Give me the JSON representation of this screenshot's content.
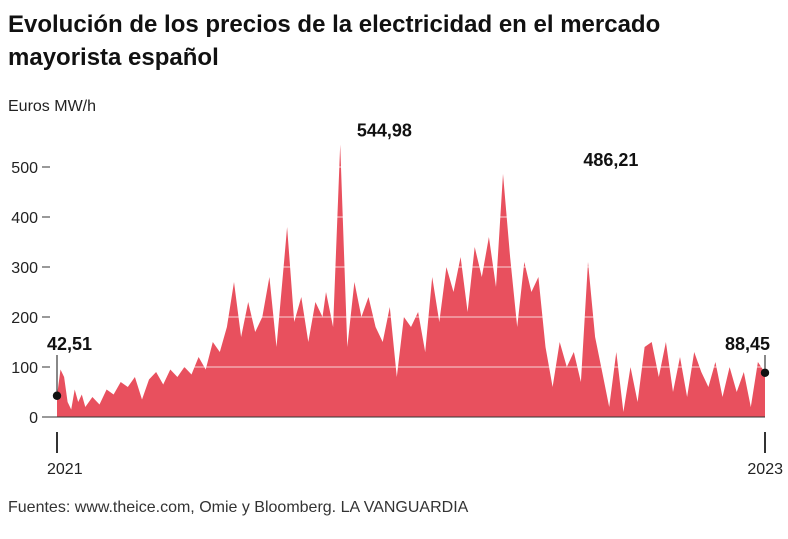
{
  "header": {
    "title": "Evolución de los precios de la electricidad en el mercado mayorista español"
  },
  "footer": {
    "source": "Fuentes: www.theice.com, Omie y Bloomberg. LA VANGUARDIA"
  },
  "colors": {
    "area_fill": "#e8505e",
    "gridline": "#ffffff",
    "axis": "#333333",
    "marker": "#111111"
  },
  "chart_data": {
    "type": "area",
    "ylabel": "Euros MW/h",
    "xlabel": "",
    "ylim": [
      0,
      560
    ],
    "yticks": [
      0,
      100,
      200,
      300,
      400,
      500
    ],
    "xlim": [
      2021.0,
      2023.0
    ],
    "xticks": [
      {
        "value": 2021.0,
        "label": "2021"
      },
      {
        "value": 2023.0,
        "label": "2023"
      }
    ],
    "grid": "horizontal",
    "series": [
      {
        "x": [
          2021.0,
          2021.01,
          2021.02,
          2021.03,
          2021.04,
          2021.05,
          2021.06,
          2021.07,
          2021.08,
          2021.1,
          2021.12,
          2021.14,
          2021.16,
          2021.18,
          2021.2,
          2021.22,
          2021.24,
          2021.26,
          2021.28,
          2021.3,
          2021.32,
          2021.34,
          2021.36,
          2021.38,
          2021.4,
          2021.42,
          2021.44,
          2021.46,
          2021.48,
          2021.5,
          2021.52,
          2021.54,
          2021.56,
          2021.58,
          2021.6,
          2021.62,
          2021.64,
          2021.65,
          2021.67,
          2021.69,
          2021.71,
          2021.73,
          2021.75,
          2021.76,
          2021.78,
          2021.8,
          2021.82,
          2021.84,
          2021.86,
          2021.88,
          2021.9,
          2021.92,
          2021.94,
          2021.96,
          2021.98,
          2022.0,
          2022.02,
          2022.04,
          2022.06,
          2022.08,
          2022.1,
          2022.12,
          2022.14,
          2022.16,
          2022.18,
          2022.2,
          2022.22,
          2022.24,
          2022.26,
          2022.28,
          2022.3,
          2022.32,
          2022.34,
          2022.36,
          2022.38,
          2022.4,
          2022.42,
          2022.44,
          2022.46,
          2022.48,
          2022.5,
          2022.52,
          2022.54,
          2022.56,
          2022.58,
          2022.6,
          2022.62,
          2022.64,
          2022.66,
          2022.68,
          2022.7,
          2022.72,
          2022.74,
          2022.76,
          2022.78,
          2022.8,
          2022.82,
          2022.84,
          2022.86,
          2022.88,
          2022.9,
          2022.92,
          2022.94,
          2022.96,
          2022.98,
          2023.0
        ],
        "y": [
          42.51,
          95,
          80,
          30,
          15,
          55,
          30,
          45,
          20,
          40,
          25,
          55,
          45,
          70,
          60,
          80,
          35,
          75,
          90,
          65,
          95,
          80,
          100,
          85,
          120,
          95,
          150,
          130,
          180,
          270,
          160,
          230,
          170,
          200,
          280,
          140,
          300,
          380,
          190,
          240,
          150,
          230,
          200,
          250,
          180,
          544.98,
          140,
          270,
          200,
          240,
          180,
          150,
          220,
          80,
          200,
          180,
          210,
          130,
          280,
          190,
          300,
          250,
          320,
          210,
          340,
          280,
          360,
          260,
          486.21,
          320,
          180,
          310,
          250,
          280,
          140,
          60,
          150,
          100,
          130,
          70,
          310,
          160,
          90,
          20,
          130,
          10,
          100,
          30,
          140,
          150,
          80,
          150,
          50,
          120,
          40,
          130,
          90,
          60,
          110,
          40,
          100,
          50,
          90,
          20,
          110,
          88.45
        ]
      }
    ],
    "annotations": [
      {
        "x": 2021.0,
        "y": 42.51,
        "label": "42,51"
      },
      {
        "x": 2021.84,
        "y": 544.98,
        "label": "544,98"
      },
      {
        "x": 2022.48,
        "y": 486.21,
        "label": "486,21"
      },
      {
        "x": 2023.0,
        "y": 88.45,
        "label": "88,45"
      }
    ]
  }
}
